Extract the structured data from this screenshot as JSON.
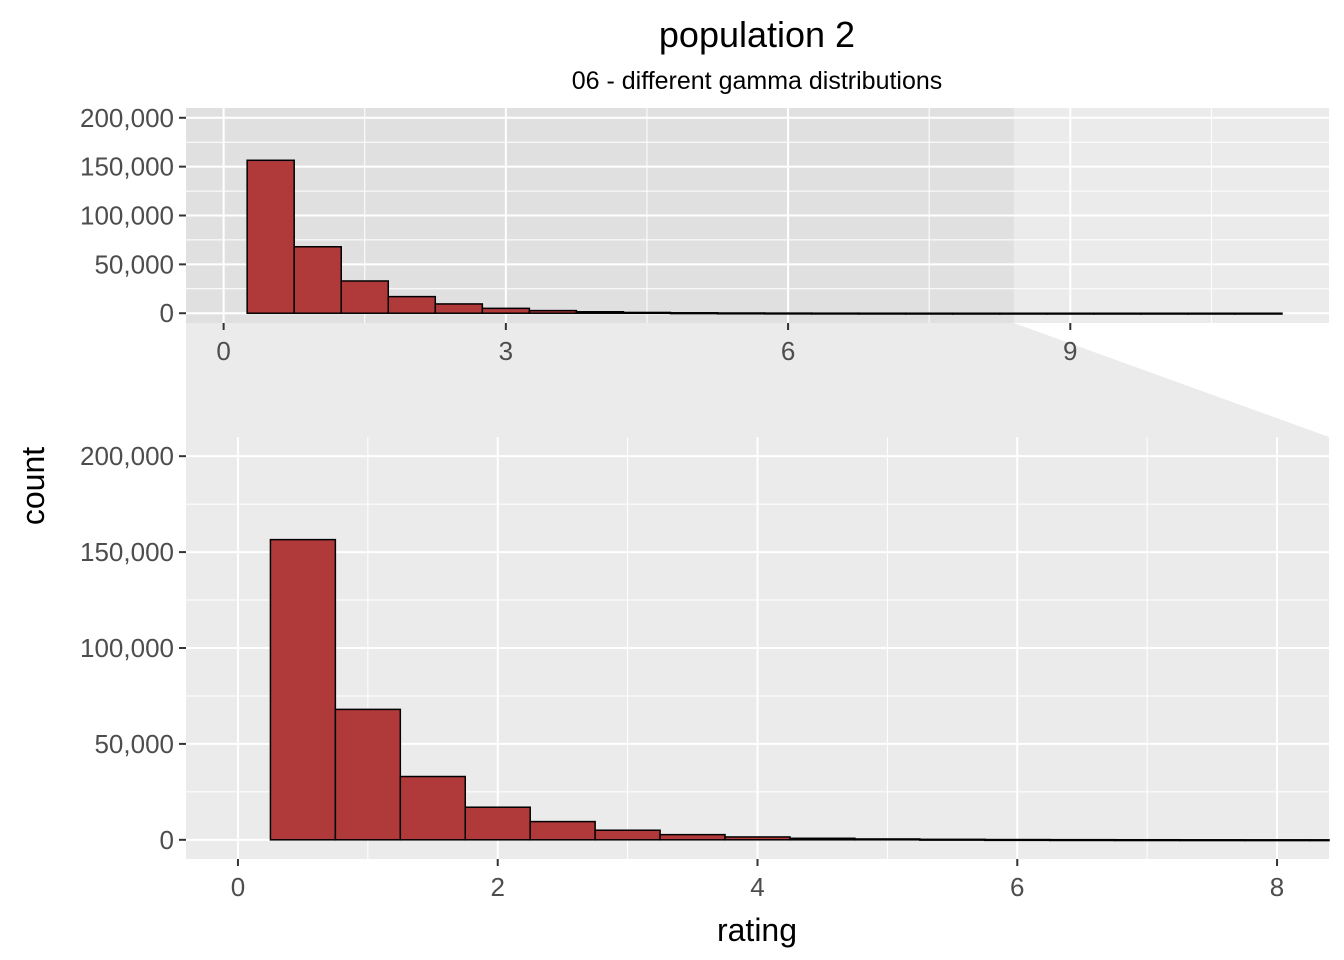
{
  "chart_data": {
    "type": "bar",
    "title": "population 2",
    "subtitle": "06 - different gamma distributions",
    "xlabel": "rating",
    "ylabel": "count",
    "bin_width": 0.5,
    "bins": [
      {
        "x0": 0.25,
        "x1": 0.75,
        "count": 156500
      },
      {
        "x0": 0.75,
        "x1": 1.25,
        "count": 68000
      },
      {
        "x0": 1.25,
        "x1": 1.75,
        "count": 33000
      },
      {
        "x0": 1.75,
        "x1": 2.25,
        "count": 17000
      },
      {
        "x0": 2.25,
        "x1": 2.75,
        "count": 9500
      },
      {
        "x0": 2.75,
        "x1": 3.25,
        "count": 5000
      },
      {
        "x0": 3.25,
        "x1": 3.75,
        "count": 2700
      },
      {
        "x0": 3.75,
        "x1": 4.25,
        "count": 1500
      },
      {
        "x0": 4.25,
        "x1": 4.75,
        "count": 800
      },
      {
        "x0": 4.75,
        "x1": 5.25,
        "count": 450
      },
      {
        "x0": 5.25,
        "x1": 5.75,
        "count": 250
      },
      {
        "x0": 5.75,
        "x1": 6.25,
        "count": 140
      },
      {
        "x0": 6.25,
        "x1": 6.75,
        "count": 80
      },
      {
        "x0": 6.75,
        "x1": 7.25,
        "count": 45
      },
      {
        "x0": 7.25,
        "x1": 7.75,
        "count": 25
      },
      {
        "x0": 7.75,
        "x1": 8.25,
        "count": 14
      },
      {
        "x0": 8.25,
        "x1": 8.75,
        "count": 8
      },
      {
        "x0": 8.75,
        "x1": 9.25,
        "count": 5
      },
      {
        "x0": 9.25,
        "x1": 9.75,
        "count": 3
      },
      {
        "x0": 9.75,
        "x1": 10.25,
        "count": 2
      },
      {
        "x0": 10.25,
        "x1": 10.75,
        "count": 1
      },
      {
        "x0": 10.75,
        "x1": 11.25,
        "count": 1
      }
    ],
    "overview_panel": {
      "xlim": [
        -0.4,
        11.75
      ],
      "ylim": [
        -10000,
        210000
      ],
      "x_ticks": [
        "0",
        "3",
        "6",
        "9"
      ],
      "x_tick_values": [
        0,
        3,
        6,
        9
      ],
      "y_ticks": [
        "0",
        "50,000",
        "100,000",
        "150,000",
        "200,000"
      ],
      "y_tick_values": [
        0,
        50000,
        100000,
        150000,
        200000
      ],
      "zoom_region": [
        -0.4,
        8.4
      ]
    },
    "zoom_panel": {
      "xlim": [
        -0.4,
        8.4
      ],
      "ylim": [
        -10000,
        210000
      ],
      "x_ticks": [
        "0",
        "2",
        "4",
        "6",
        "8"
      ],
      "x_tick_values": [
        0,
        2,
        4,
        6,
        8
      ],
      "y_ticks": [
        "0",
        "50,000",
        "100,000",
        "150,000",
        "200,000"
      ],
      "y_tick_values": [
        0,
        50000,
        100000,
        150000,
        200000
      ]
    },
    "bar_color": "#b03a3a",
    "bar_outline": "#000000",
    "panel_background": "#ebebeb",
    "zoom_shade": "#e0e0e0",
    "grid": true,
    "legend": "none"
  }
}
